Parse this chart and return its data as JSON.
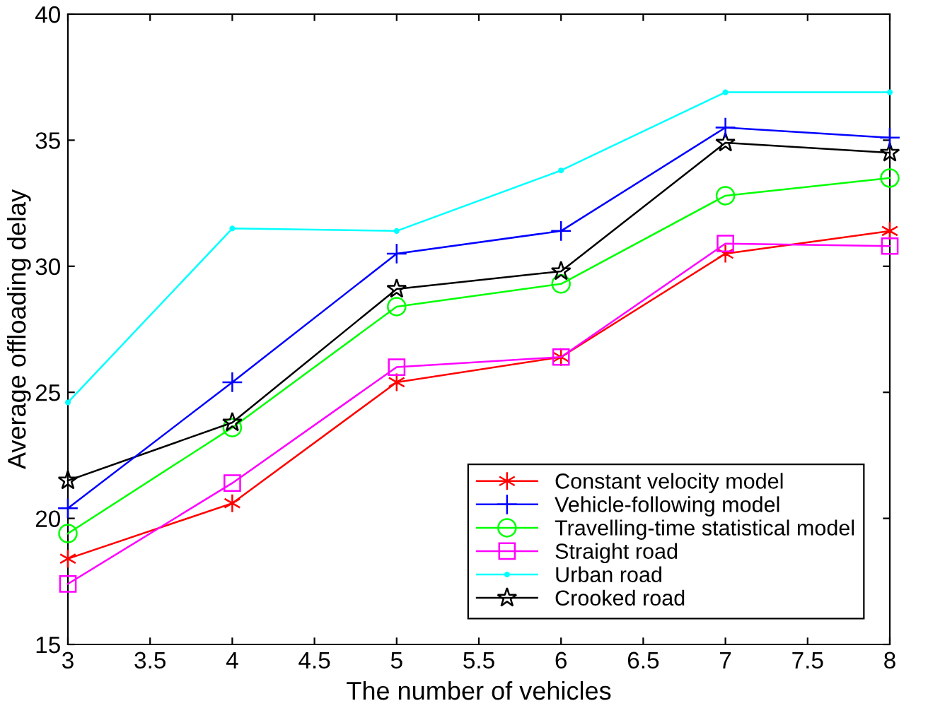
{
  "chart_data": {
    "type": "line",
    "xlabel": "The number of vehicles",
    "ylabel": "Average offloading delay",
    "x": [
      3,
      4,
      5,
      6,
      7,
      8
    ],
    "series": [
      {
        "name": "Constant velocity model",
        "color": "#ff0000",
        "marker": "cross",
        "values": [
          18.4,
          20.6,
          25.4,
          26.4,
          30.5,
          31.4
        ]
      },
      {
        "name": "Vehicle-following model",
        "color": "#0000ff",
        "marker": "plus",
        "values": [
          20.4,
          25.4,
          30.5,
          31.4,
          35.5,
          35.1
        ]
      },
      {
        "name": "Travelling-time statistical model",
        "color": "#00ff00",
        "marker": "circle",
        "values": [
          19.4,
          23.6,
          28.4,
          29.3,
          32.8,
          33.5
        ]
      },
      {
        "name": "Straight road",
        "color": "#ff00ff",
        "marker": "square",
        "values": [
          17.4,
          21.4,
          26.0,
          26.4,
          30.9,
          30.8
        ]
      },
      {
        "name": "Urban road",
        "color": "#00ffff",
        "marker": "point",
        "values": [
          24.6,
          31.5,
          31.4,
          33.8,
          36.9,
          36.9
        ]
      },
      {
        "name": "Crooked road",
        "color": "#000000",
        "marker": "star",
        "values": [
          21.5,
          23.8,
          29.1,
          29.8,
          34.9,
          34.5
        ]
      }
    ],
    "xlim": [
      3,
      8
    ],
    "ylim": [
      15,
      40
    ],
    "xticks": [
      3,
      3.5,
      4,
      4.5,
      5,
      5.5,
      6,
      6.5,
      7,
      7.5,
      8
    ],
    "yticks": [
      15,
      20,
      25,
      30,
      35,
      40
    ],
    "grid": false,
    "legend": "bottom right",
    "line_style": "solid"
  }
}
